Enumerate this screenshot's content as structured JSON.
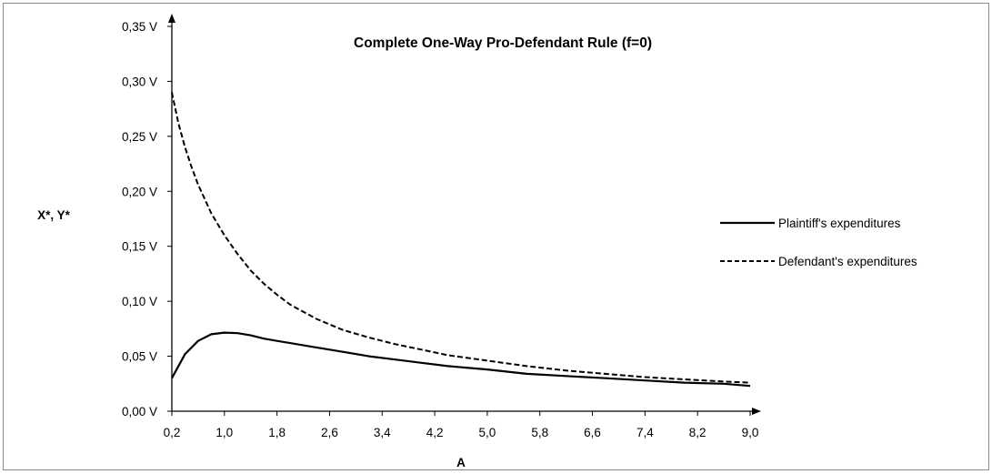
{
  "chart_data": {
    "type": "line",
    "title": "Complete One-Way Pro-Defendant Rule (f=0)",
    "xlabel": "A",
    "ylabel": "X*, Y*",
    "xlim": [
      0.2,
      9.0
    ],
    "ylim": [
      0,
      0.35
    ],
    "x_ticks": [
      "0,2",
      "1,0",
      "1,8",
      "2,6",
      "3,4",
      "4,2",
      "5,0",
      "5,8",
      "6,6",
      "7,4",
      "8,2",
      "9,0"
    ],
    "y_ticks": [
      "0,00 V",
      "0,05 V",
      "0,10 V",
      "0,15 V",
      "0,20 V",
      "0,25 V",
      "0,30 V",
      "0,35 V"
    ],
    "grid": false,
    "legend_position": "right",
    "series": [
      {
        "name": "Plaintiff's expenditures",
        "style": "solid",
        "color": "#000000",
        "x": [
          0.2,
          0.4,
          0.6,
          0.8,
          1.0,
          1.2,
          1.4,
          1.6,
          1.8,
          2.0,
          2.4,
          2.8,
          3.2,
          3.6,
          4.0,
          4.4,
          5.0,
          5.6,
          6.2,
          6.8,
          7.4,
          8.0,
          8.6,
          9.0
        ],
        "values": [
          0.03,
          0.052,
          0.064,
          0.07,
          0.0715,
          0.071,
          0.069,
          0.066,
          0.064,
          0.062,
          0.058,
          0.054,
          0.05,
          0.047,
          0.044,
          0.041,
          0.038,
          0.034,
          0.032,
          0.03,
          0.028,
          0.026,
          0.025,
          0.023
        ]
      },
      {
        "name": "Defendant's expenditures",
        "style": "dashed",
        "color": "#000000",
        "x": [
          0.2,
          0.3,
          0.4,
          0.5,
          0.6,
          0.8,
          1.0,
          1.2,
          1.4,
          1.6,
          1.8,
          2.0,
          2.4,
          2.8,
          3.2,
          3.6,
          4.0,
          4.4,
          5.0,
          5.6,
          6.2,
          6.8,
          7.4,
          8.0,
          8.6,
          9.0
        ],
        "values": [
          0.29,
          0.262,
          0.24,
          0.222,
          0.206,
          0.18,
          0.16,
          0.143,
          0.128,
          0.116,
          0.106,
          0.097,
          0.084,
          0.074,
          0.067,
          0.061,
          0.056,
          0.051,
          0.046,
          0.041,
          0.037,
          0.034,
          0.031,
          0.029,
          0.027,
          0.026
        ]
      }
    ]
  }
}
